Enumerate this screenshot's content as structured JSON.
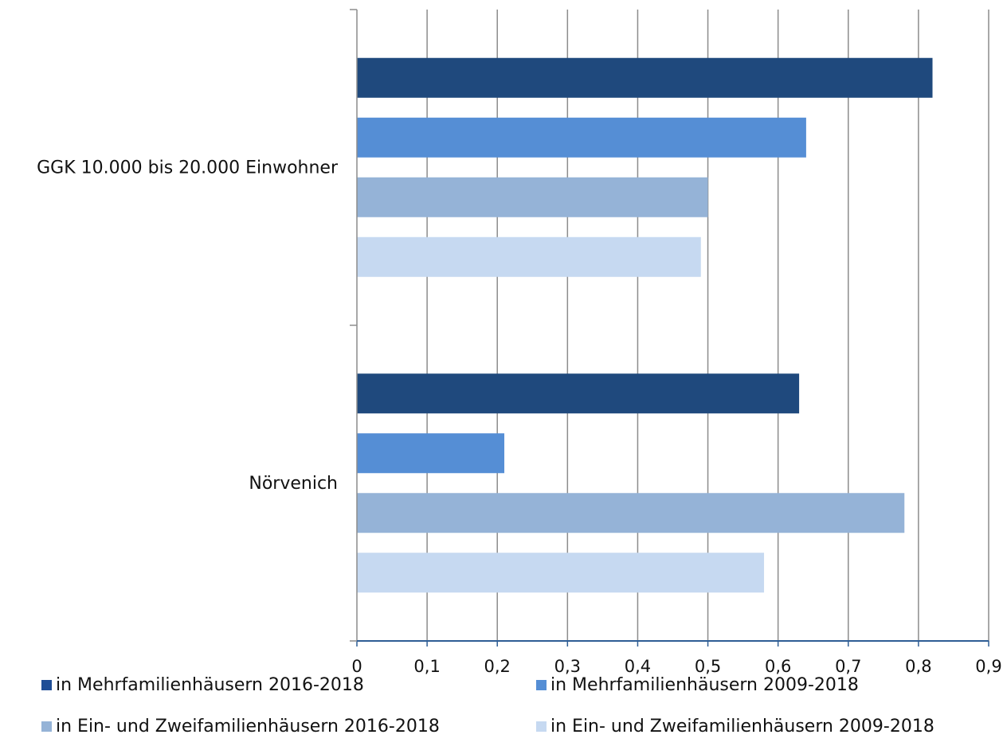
{
  "chart_data": {
    "type": "bar",
    "orientation": "horizontal",
    "categories": [
      "GGK 10.000 bis 20.000 Einwohner",
      "Nörvenich"
    ],
    "series": [
      {
        "name": "in Mehrfamilienhäusern 2016-2018",
        "values": [
          0.82,
          0.63
        ],
        "color": "#1f497d"
      },
      {
        "name": "in Mehrfamilienhäusern 2009-2018",
        "values": [
          0.64,
          0.21
        ],
        "color": "#558ed5"
      },
      {
        "name": "in Ein- und Zweifamilienhäusern 2016-2018",
        "values": [
          0.5,
          0.78
        ],
        "color": "#95b3d7"
      },
      {
        "name": "in Ein- und Zweifamilienhäusern 2009-2018",
        "values": [
          0.49,
          0.58
        ],
        "color": "#c6d9f1"
      }
    ],
    "xlim": [
      0,
      0.9
    ],
    "xticks": [
      "0",
      "0,1",
      "0,2",
      "0,3",
      "0,4",
      "0,5",
      "0,6",
      "0,7",
      "0,8",
      "0,9"
    ],
    "grid": true,
    "legend_position": "bottom"
  }
}
